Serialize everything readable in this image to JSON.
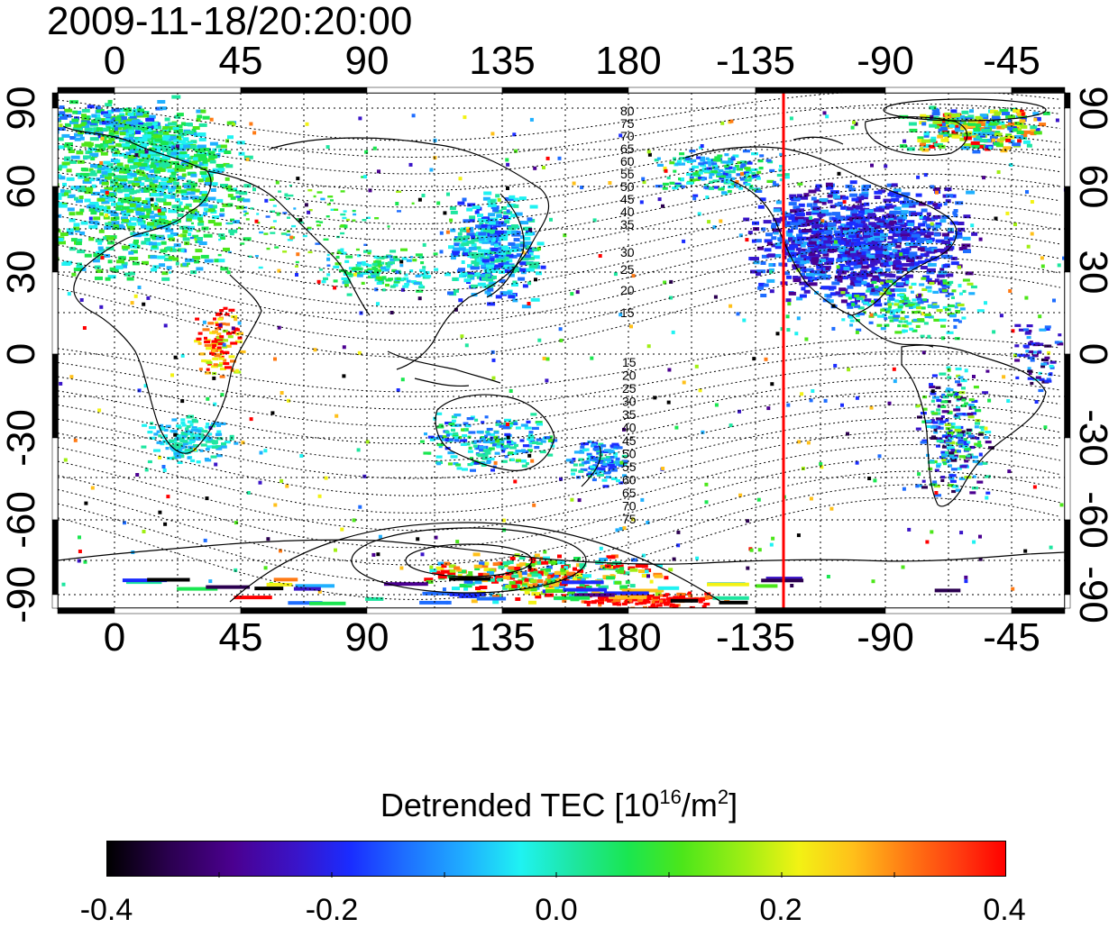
{
  "title": "2009-11-18/20:20:00",
  "map": {
    "lon_labels": [
      "0",
      "45",
      "90",
      "135",
      "180",
      "-135",
      "-90",
      "-45"
    ],
    "lat_labels": [
      "90",
      "60",
      "30",
      "0",
      "-30",
      "-60",
      "-90"
    ],
    "contour_labels_north": [
      "80",
      "75",
      "70",
      "65",
      "60",
      "55",
      "50",
      "45",
      "40",
      "35",
      "30",
      "25",
      "20",
      "15"
    ],
    "contour_labels_south": [
      "15",
      "20",
      "25",
      "30",
      "35",
      "40",
      "45",
      "50",
      "55",
      "60",
      "65",
      "70",
      "75"
    ],
    "marker_line_color": "#ff0000"
  },
  "colorbar": {
    "title_main": "Detrended TEC  [10",
    "title_exp": "16",
    "title_unit": "/m",
    "title_exp2": "2",
    "title_end": "]",
    "ticks": [
      "-0.4",
      "-0.2",
      "0.0",
      "0.2",
      "0.4"
    ],
    "min": -0.4,
    "max": 0.4
  }
}
